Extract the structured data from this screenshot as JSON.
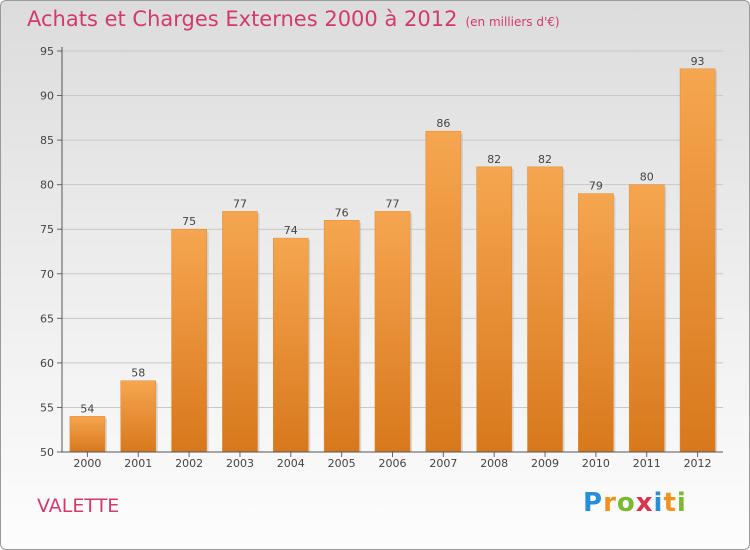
{
  "title": "Achats et Charges Externes 2000 à 2012",
  "subtitle": "(en milliers d'€)",
  "commune": "VALETTE",
  "logo": {
    "letters": [
      "P",
      "r",
      "o",
      "x",
      "i",
      "t",
      "i"
    ],
    "colors": [
      "#2a8ed6",
      "#f0931d",
      "#7cb932",
      "#d9344a",
      "#2a8ed6",
      "#f0931d",
      "#7cb932"
    ]
  },
  "chart_data": {
    "type": "bar",
    "title": "Achats et Charges Externes 2000 à 2012",
    "xlabel": "",
    "ylabel": "",
    "categories": [
      "2000",
      "2001",
      "2002",
      "2003",
      "2004",
      "2005",
      "2006",
      "2007",
      "2008",
      "2009",
      "2010",
      "2011",
      "2012"
    ],
    "values": [
      54,
      58,
      75,
      77,
      74,
      76,
      77,
      86,
      82,
      82,
      79,
      80,
      93
    ],
    "ylim": [
      50,
      95
    ],
    "yticks": [
      50,
      55,
      60,
      65,
      70,
      75,
      80,
      85,
      90,
      95
    ],
    "grid": true,
    "bar_color": "#f09a3c"
  }
}
